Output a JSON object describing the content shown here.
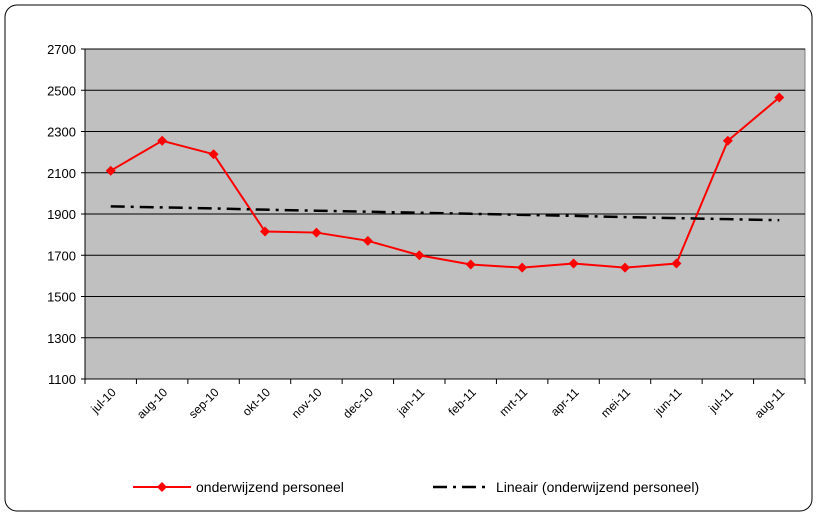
{
  "chart_data": {
    "type": "line",
    "categories": [
      "jul-10",
      "aug-10",
      "sep-10",
      "okt-10",
      "nov-10",
      "dec-10",
      "jan-11",
      "feb-11",
      "mrt-11",
      "apr-11",
      "mei-11",
      "jun-11",
      "jul-11",
      "aug-11"
    ],
    "series": [
      {
        "name": "onderwijzend personeel",
        "color": "#ff0000",
        "style": "solid",
        "marker": "diamond",
        "values": [
          2110,
          2255,
          2190,
          1815,
          1810,
          1770,
          1700,
          1655,
          1640,
          1660,
          1640,
          1660,
          2255,
          2465
        ]
      },
      {
        "name": "Lineair (onderwijzend personeel)",
        "color": "#000000",
        "style": "dashdot",
        "values": [
          1937,
          1932,
          1927,
          1921,
          1916,
          1911,
          1906,
          1901,
          1896,
          1891,
          1885,
          1880,
          1875,
          1870
        ]
      }
    ],
    "ylim": [
      1100,
      2700
    ],
    "yticks": [
      1100,
      1300,
      1500,
      1700,
      1900,
      2100,
      2300,
      2500,
      2700
    ],
    "grid": true,
    "legend": "bottom"
  }
}
